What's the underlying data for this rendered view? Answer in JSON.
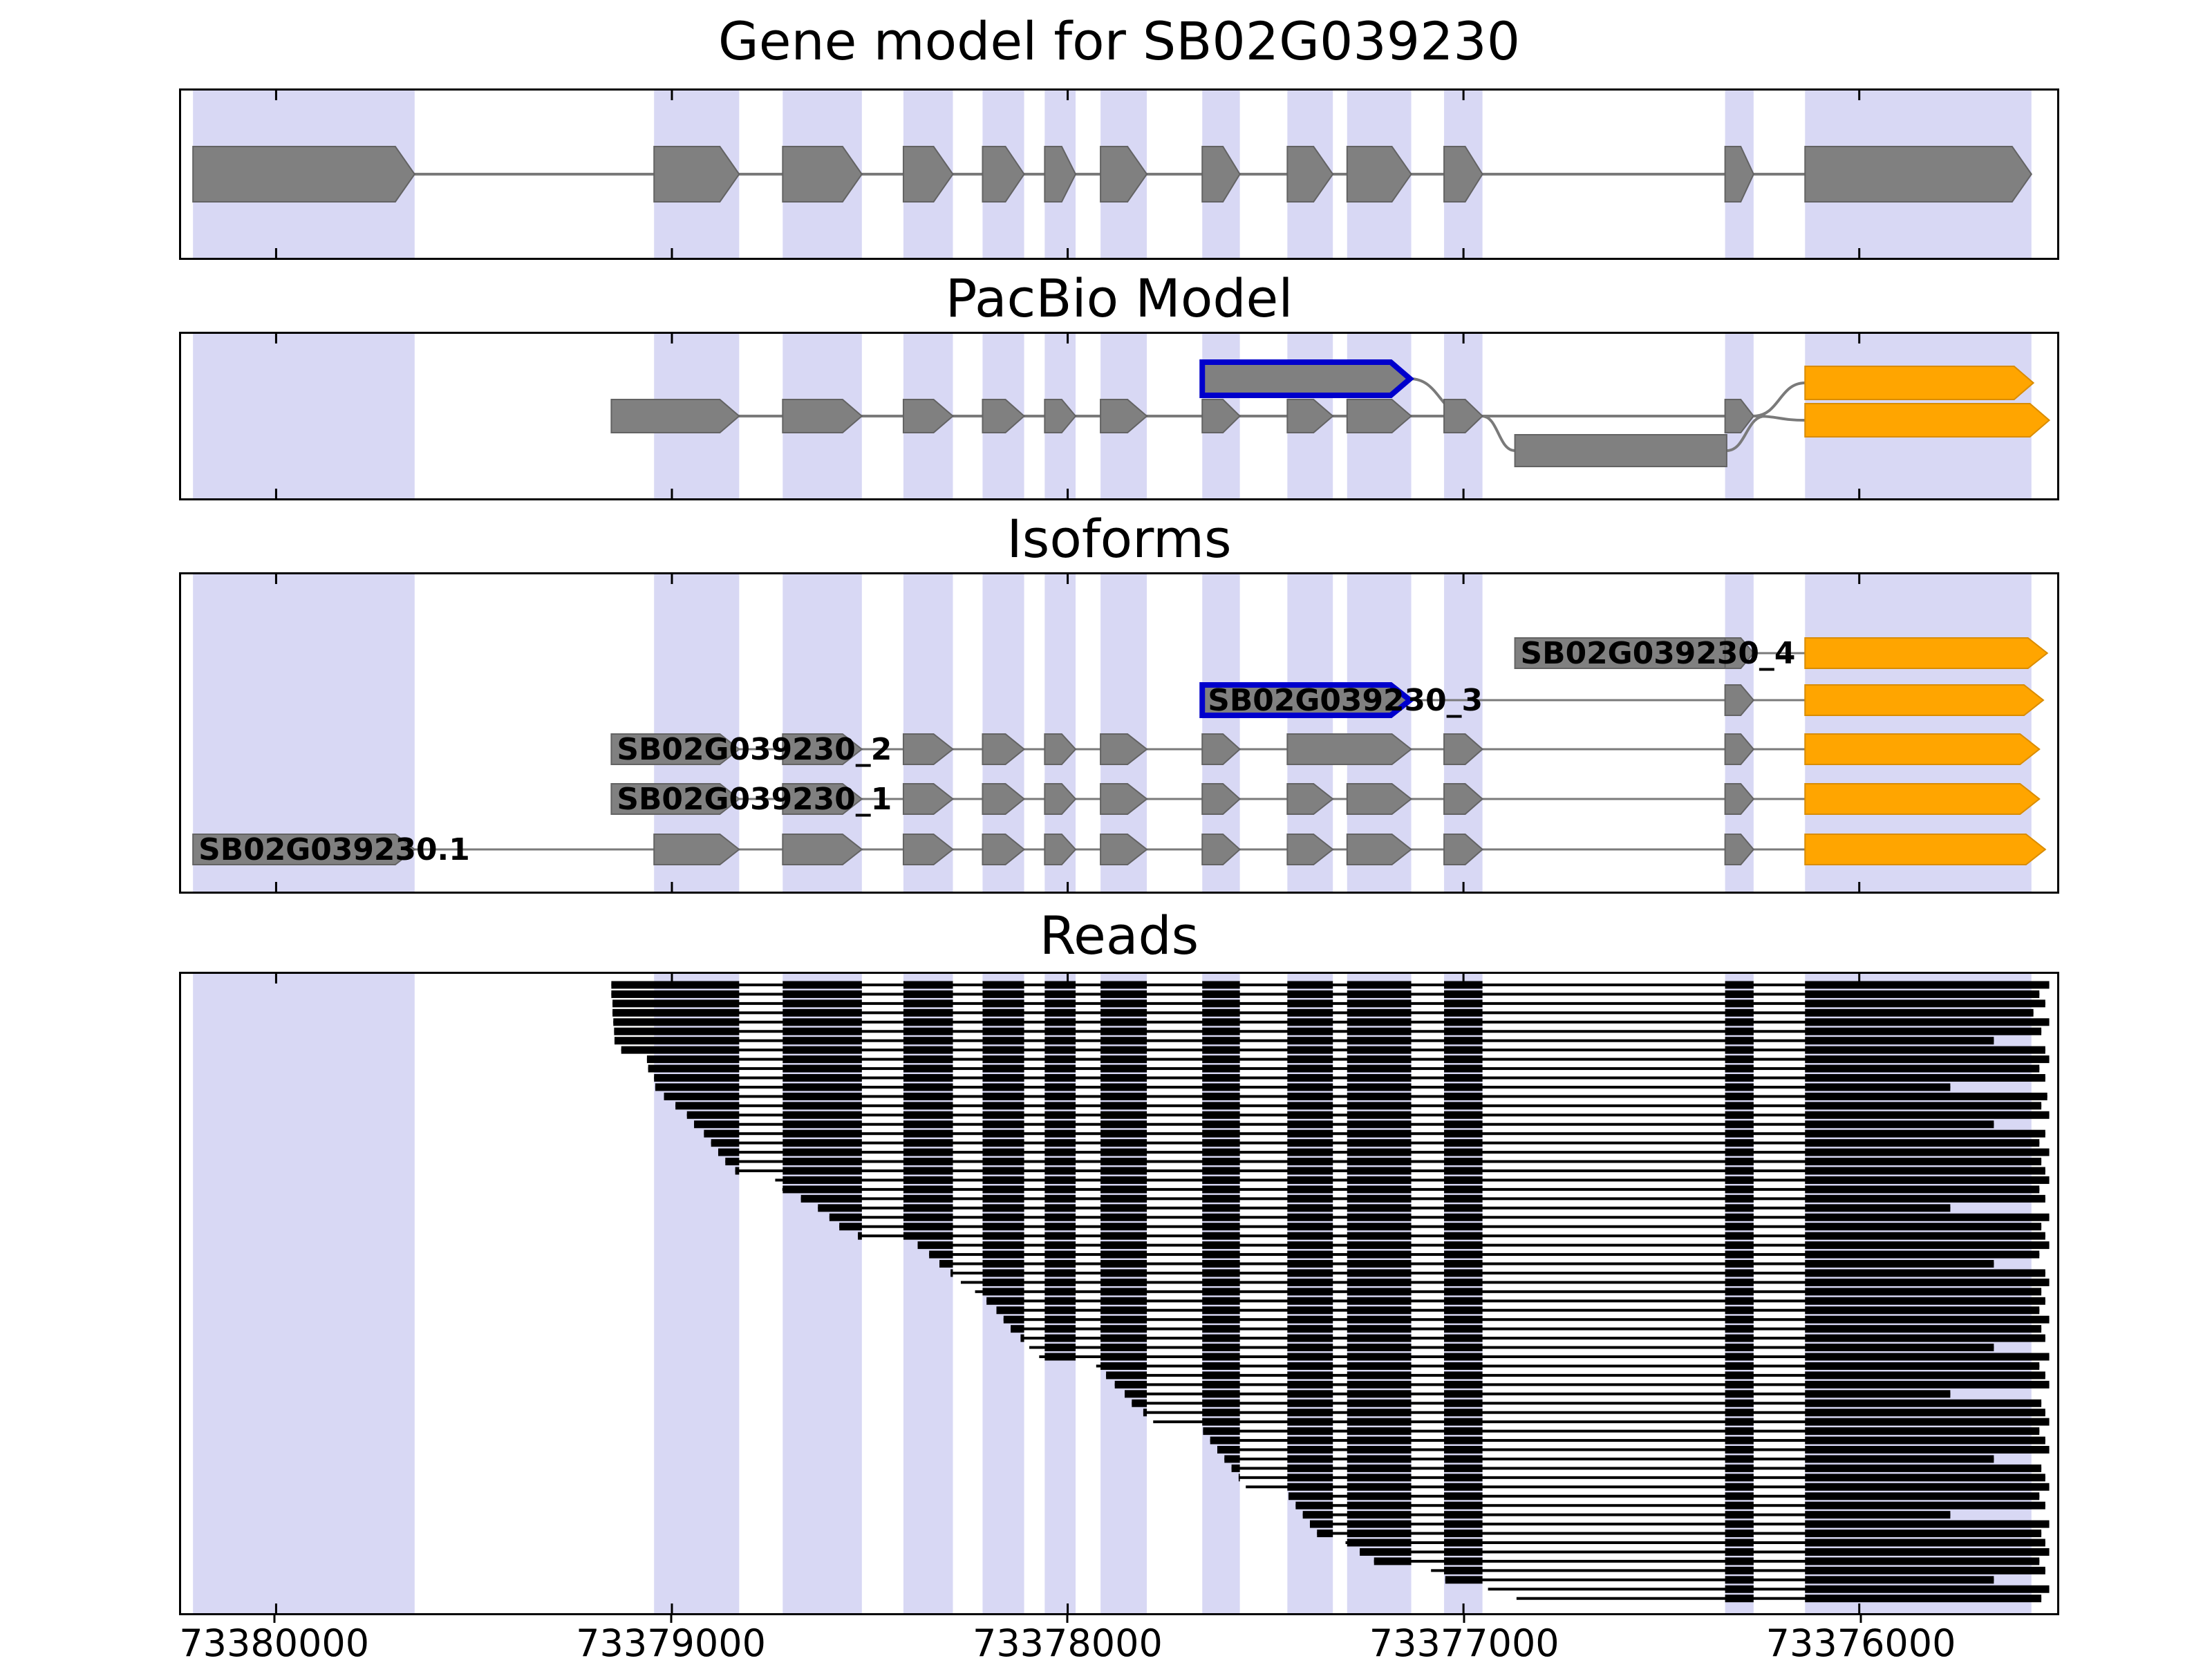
{
  "titles": {
    "gene_model": "Gene model for SB02G039230",
    "pacbio": "PacBio Model",
    "isoforms": "Isoforms",
    "reads": "Reads"
  },
  "colors": {
    "band": "#d8d8f4",
    "exon_gray": "#808080",
    "exon_gray_stroke": "#636363",
    "orange": "#FFA500",
    "orange_stroke": "#d98c00",
    "blue_outline": "#0000cc",
    "intron_line": "#7a7a7a",
    "read_black": "#000000"
  },
  "chart_data": {
    "type": "genomic-track-plot",
    "gene_id": "SB02G039230",
    "x_axis": {
      "range_left": 73380240,
      "range_right": 73375500,
      "direction": "decreasing",
      "ticks": [
        73380000,
        73379000,
        73378000,
        73377000,
        73376000
      ],
      "labels": [
        "73380000",
        "73379000",
        "73378000",
        "73377000",
        "73376000"
      ]
    },
    "highlight_bands": [
      [
        73380210,
        73379650
      ],
      [
        73379045,
        73378830
      ],
      [
        73378720,
        73378520
      ],
      [
        73378415,
        73378290
      ],
      [
        73378215,
        73378110
      ],
      [
        73378058,
        73377980
      ],
      [
        73377917,
        73377800
      ],
      [
        73377660,
        73377565
      ],
      [
        73377445,
        73377330
      ],
      [
        73377294,
        73377132
      ],
      [
        73377049,
        73376952
      ],
      [
        73376339,
        73376267
      ],
      [
        73376137,
        73375565
      ]
    ],
    "gene_model": {
      "exons": [
        [
          73380210,
          73379650
        ],
        [
          73379045,
          73378830
        ],
        [
          73378720,
          73378520
        ],
        [
          73378415,
          73378290
        ],
        [
          73378215,
          73378110
        ],
        [
          73378058,
          73377980
        ],
        [
          73377917,
          73377800
        ],
        [
          73377660,
          73377565
        ],
        [
          73377445,
          73377330
        ],
        [
          73377294,
          73377132
        ],
        [
          73377049,
          73376952
        ],
        [
          73376339,
          73376267
        ],
        [
          73376137,
          73375565
        ]
      ]
    },
    "pacbio_model": {
      "line": [
        73379153,
        73376267
      ],
      "main_exons": [
        [
          73379153,
          73378830
        ],
        [
          73378720,
          73378520
        ],
        [
          73378415,
          73378290
        ],
        [
          73378215,
          73378110
        ],
        [
          73378058,
          73377980
        ],
        [
          73377917,
          73377800
        ],
        [
          73377660,
          73377565
        ],
        [
          73377445,
          73377330
        ],
        [
          73377294,
          73377132
        ],
        [
          73377049,
          73376952
        ],
        [
          73376339,
          73376267
        ]
      ],
      "novel_exon": {
        "span": [
          73377660,
          73377135
        ],
        "row": "above",
        "outline": "blue"
      },
      "retained_exon": {
        "span": [
          73376870,
          73376335
        ],
        "row": "below"
      },
      "end_exons_orange": [
        [
          73376137,
          73375560
        ],
        [
          73376137,
          73375520
        ]
      ]
    },
    "isoforms": [
      {
        "name": "SB02G039230_4",
        "exons": [
          {
            "s": 73376870,
            "e": 73376339,
            "fill": "gray",
            "shape": "rect"
          },
          {
            "s": 73376339,
            "e": 73376267,
            "fill": "gray"
          },
          {
            "s": 73376137,
            "e": 73375525,
            "fill": "orange"
          }
        ]
      },
      {
        "name": "SB02G039230_3",
        "exons": [
          {
            "s": 73377660,
            "e": 73377135,
            "fill": "gray",
            "outline": "blue"
          },
          {
            "s": 73376339,
            "e": 73376267,
            "fill": "gray"
          },
          {
            "s": 73376137,
            "e": 73375535,
            "fill": "orange"
          }
        ]
      },
      {
        "name": "SB02G039230_2",
        "exons": [
          {
            "s": 73379153,
            "e": 73378830,
            "fill": "gray"
          },
          {
            "s": 73378720,
            "e": 73378520,
            "fill": "gray"
          },
          {
            "s": 73378415,
            "e": 73378290,
            "fill": "gray"
          },
          {
            "s": 73378215,
            "e": 73378110,
            "fill": "gray"
          },
          {
            "s": 73378058,
            "e": 73377980,
            "fill": "gray"
          },
          {
            "s": 73377917,
            "e": 73377800,
            "fill": "gray"
          },
          {
            "s": 73377660,
            "e": 73377565,
            "fill": "gray"
          },
          {
            "s": 73377445,
            "e": 73377132,
            "fill": "gray"
          },
          {
            "s": 73377049,
            "e": 73376952,
            "fill": "gray"
          },
          {
            "s": 73376339,
            "e": 73376267,
            "fill": "gray"
          },
          {
            "s": 73376137,
            "e": 73375545,
            "fill": "orange"
          }
        ]
      },
      {
        "name": "SB02G039230_1",
        "exons": [
          {
            "s": 73379153,
            "e": 73378830,
            "fill": "gray"
          },
          {
            "s": 73378720,
            "e": 73378520,
            "fill": "gray"
          },
          {
            "s": 73378415,
            "e": 73378290,
            "fill": "gray"
          },
          {
            "s": 73378215,
            "e": 73378110,
            "fill": "gray"
          },
          {
            "s": 73378058,
            "e": 73377980,
            "fill": "gray"
          },
          {
            "s": 73377917,
            "e": 73377800,
            "fill": "gray"
          },
          {
            "s": 73377660,
            "e": 73377565,
            "fill": "gray"
          },
          {
            "s": 73377445,
            "e": 73377330,
            "fill": "gray"
          },
          {
            "s": 73377294,
            "e": 73377132,
            "fill": "gray"
          },
          {
            "s": 73377049,
            "e": 73376952,
            "fill": "gray"
          },
          {
            "s": 73376339,
            "e": 73376267,
            "fill": "gray"
          },
          {
            "s": 73376137,
            "e": 73375545,
            "fill": "orange"
          }
        ]
      },
      {
        "name": "SB02G039230.1",
        "exons": [
          {
            "s": 73380210,
            "e": 73379650,
            "fill": "gray"
          },
          {
            "s": 73379045,
            "e": 73378830,
            "fill": "gray"
          },
          {
            "s": 73378720,
            "e": 73378520,
            "fill": "gray"
          },
          {
            "s": 73378415,
            "e": 73378290,
            "fill": "gray"
          },
          {
            "s": 73378215,
            "e": 73378110,
            "fill": "gray"
          },
          {
            "s": 73378058,
            "e": 73377980,
            "fill": "gray"
          },
          {
            "s": 73377917,
            "e": 73377800,
            "fill": "gray"
          },
          {
            "s": 73377660,
            "e": 73377565,
            "fill": "gray"
          },
          {
            "s": 73377445,
            "e": 73377330,
            "fill": "gray"
          },
          {
            "s": 73377294,
            "e": 73377132,
            "fill": "gray"
          },
          {
            "s": 73377049,
            "e": 73376952,
            "fill": "gray"
          },
          {
            "s": 73376339,
            "e": 73376267,
            "fill": "gray"
          },
          {
            "s": 73376137,
            "e": 73375530,
            "fill": "orange"
          }
        ]
      }
    ],
    "read_exon_blocks": [
      [
        73379153,
        73378830
      ],
      [
        73378720,
        73378520
      ],
      [
        73378415,
        73378290
      ],
      [
        73378215,
        73378110
      ],
      [
        73378058,
        73377980
      ],
      [
        73377917,
        73377800
      ],
      [
        73377660,
        73377565
      ],
      [
        73377445,
        73377330
      ],
      [
        73377294,
        73377132
      ],
      [
        73377049,
        73376952
      ],
      [
        73376339,
        73376267
      ],
      [
        73376137,
        73375500
      ]
    ],
    "reads": [
      [
        73379153,
        73375520
      ],
      [
        73379153,
        73375545
      ],
      [
        73379150,
        73375530
      ],
      [
        73379150,
        73375560
      ],
      [
        73379148,
        73375520
      ],
      [
        73379146,
        73375540
      ],
      [
        73379145,
        73375660
      ],
      [
        73379128,
        73375530
      ],
      [
        73379063,
        73375520
      ],
      [
        73379060,
        73375545
      ],
      [
        73379045,
        73375530
      ],
      [
        73379042,
        73375770
      ],
      [
        73379020,
        73375525
      ],
      [
        73378991,
        73375540
      ],
      [
        73378962,
        73375520
      ],
      [
        73378944,
        73375660
      ],
      [
        73378919,
        73375530
      ],
      [
        73378901,
        73375545
      ],
      [
        73378883,
        73375520
      ],
      [
        73378865,
        73375540
      ],
      [
        73378840,
        73375530
      ],
      [
        73378739,
        73375520
      ],
      [
        73378721,
        73375545
      ],
      [
        73378674,
        73375530
      ],
      [
        73378631,
        73375770
      ],
      [
        73378602,
        73375520
      ],
      [
        73378577,
        73375540
      ],
      [
        73378530,
        73375530
      ],
      [
        73378379,
        73375520
      ],
      [
        73378350,
        73375545
      ],
      [
        73378324,
        73375660
      ],
      [
        73378296,
        73375530
      ],
      [
        73378270,
        73375520
      ],
      [
        73378234,
        73375540
      ],
      [
        73378205,
        73375530
      ],
      [
        73378180,
        73375545
      ],
      [
        73378162,
        73375520
      ],
      [
        73378144,
        73375540
      ],
      [
        73378119,
        73375530
      ],
      [
        73378097,
        73375660
      ],
      [
        73378072,
        73375520
      ],
      [
        73377928,
        73375545
      ],
      [
        73377903,
        73375530
      ],
      [
        73377881,
        73375520
      ],
      [
        73377856,
        73375770
      ],
      [
        73377838,
        73375540
      ],
      [
        73377809,
        73375530
      ],
      [
        73377784,
        73375520
      ],
      [
        73377658,
        73375545
      ],
      [
        73377640,
        73375530
      ],
      [
        73377622,
        73375520
      ],
      [
        73377604,
        73375660
      ],
      [
        73377586,
        73375540
      ],
      [
        73377568,
        73375530
      ],
      [
        73377550,
        73375520
      ],
      [
        73377442,
        73375545
      ],
      [
        73377424,
        73375530
      ],
      [
        73377406,
        73375770
      ],
      [
        73377388,
        73375520
      ],
      [
        73377370,
        73375540
      ],
      [
        73377298,
        73375530
      ],
      [
        73377262,
        73375520
      ],
      [
        73377226,
        73375545
      ],
      [
        73377082,
        73375530
      ],
      [
        73377046,
        73375660
      ],
      [
        73376938,
        73375520
      ],
      [
        73376866,
        73375540
      ]
    ]
  }
}
